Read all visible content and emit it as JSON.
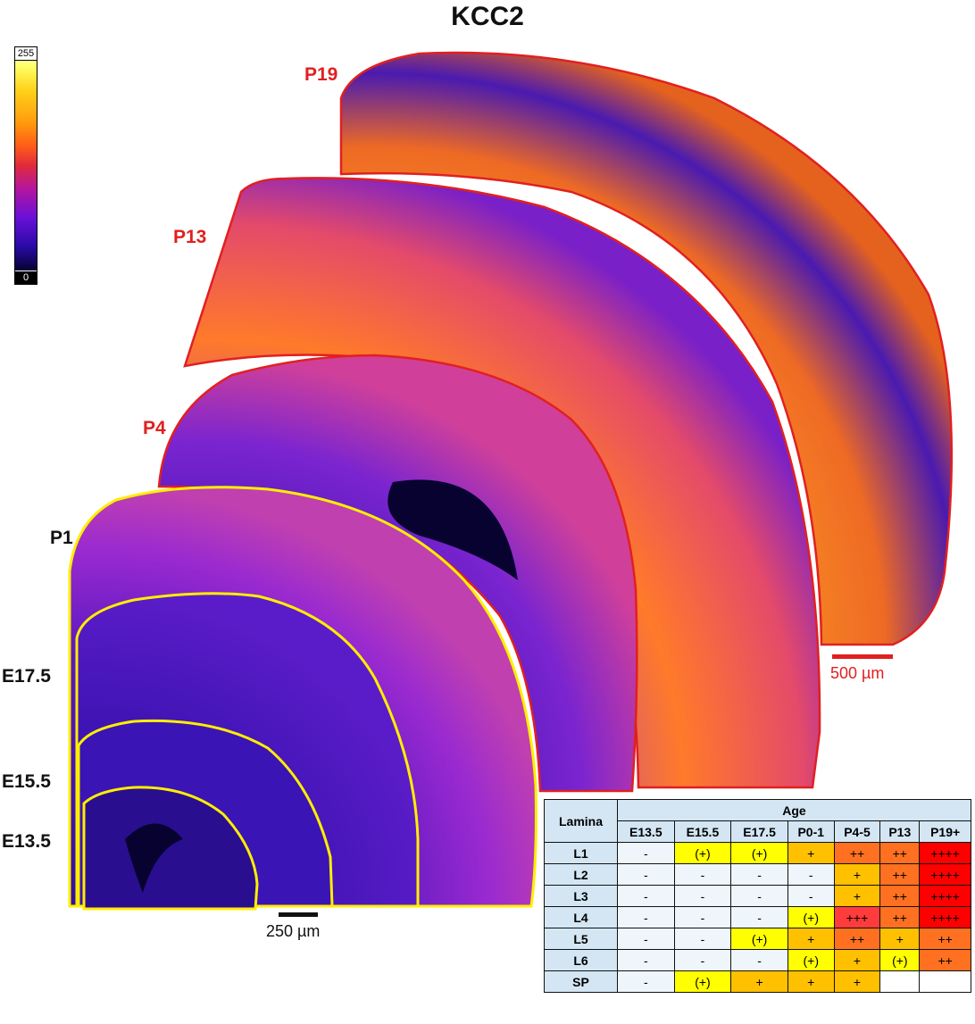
{
  "title": "KCC2",
  "colorbar": {
    "max": "255",
    "min": "0"
  },
  "ages": {
    "p19": "P19",
    "p13": "P13",
    "p4": "P4",
    "p1": "P1",
    "e175": "E17.5",
    "e155": "E15.5",
    "e135": "E13.5"
  },
  "scalebars": {
    "large": "500 µm",
    "small": "250 µm"
  },
  "table": {
    "header_lamina": "Lamina",
    "header_age": "Age",
    "columns": [
      "E13.5",
      "E15.5",
      "E17.5",
      "P0-1",
      "P4-5",
      "P13",
      "P19+"
    ],
    "rows": [
      {
        "lamina": "L1",
        "cells": [
          "-",
          "(+)",
          "(+)",
          "+",
          "++",
          "++",
          "++++"
        ]
      },
      {
        "lamina": "L2",
        "cells": [
          "-",
          "-",
          "-",
          "-",
          "+",
          "++",
          "++++"
        ]
      },
      {
        "lamina": "L3",
        "cells": [
          "-",
          "-",
          "-",
          "-",
          "+",
          "++",
          "++++"
        ]
      },
      {
        "lamina": "L4",
        "cells": [
          "-",
          "-",
          "-",
          "(+)",
          "+++",
          "++",
          "++++"
        ]
      },
      {
        "lamina": "L5",
        "cells": [
          "-",
          "-",
          "(+)",
          "+",
          "++",
          "+",
          "++"
        ]
      },
      {
        "lamina": "L6",
        "cells": [
          "-",
          "-",
          "-",
          "(+)",
          "+",
          "(+)",
          "++"
        ]
      },
      {
        "lamina": "SP",
        "cells": [
          "-",
          "(+)",
          "+",
          "+",
          "+",
          "",
          ""
        ]
      }
    ],
    "cell_colors": {
      "none": "#eef6fb",
      "weak": "#ffff00",
      "low": "#ffc000",
      "mid": "#ff7020",
      "high": "#ff3b3b",
      "max": "#ff0000"
    }
  },
  "colors": {
    "outline_red": "#e02020",
    "outline_yellow": "#ffee00"
  }
}
